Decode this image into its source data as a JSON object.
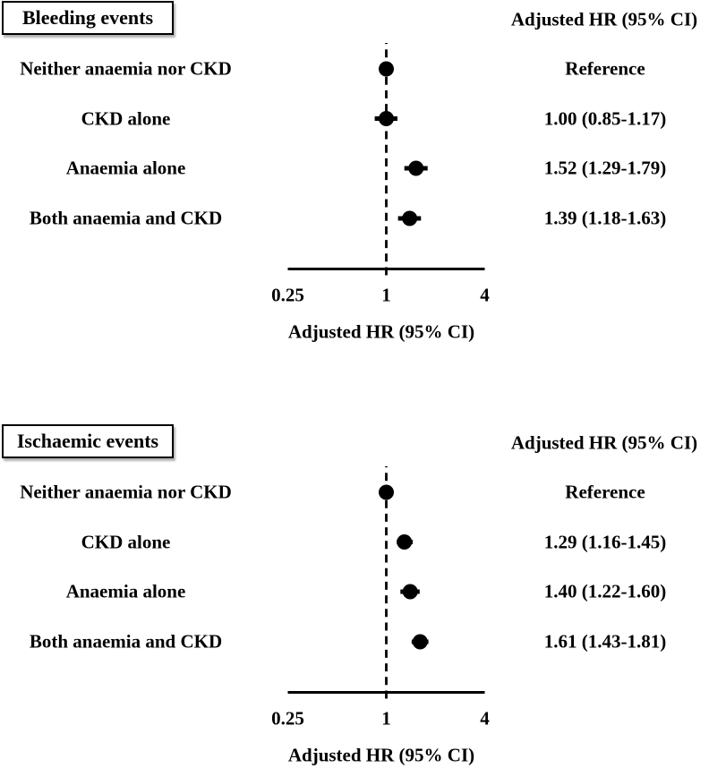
{
  "colors": {
    "foreground": "#000000",
    "background": "#ffffff"
  },
  "chart_data": [
    {
      "type": "forest",
      "title": "Bleeding events",
      "value_header": "Adjusted HR (95% CI)",
      "xlabel": "Adjusted HR (95% CI)",
      "x_scale": "log",
      "xlim": [
        0.25,
        4
      ],
      "reference_line": 1,
      "x_ticks": [
        {
          "value": 0.25,
          "label": "0.25"
        },
        {
          "value": 1,
          "label": "1"
        },
        {
          "value": 4,
          "label": "4"
        }
      ],
      "rows": [
        {
          "label": "Neither anaemia nor CKD",
          "hr": 1.0,
          "ci_low": null,
          "ci_high": null,
          "hr_text": "Reference"
        },
        {
          "label": "CKD alone",
          "hr": 1.0,
          "ci_low": 0.85,
          "ci_high": 1.17,
          "hr_text": "1.00 (0.85-1.17)"
        },
        {
          "label": "Anaemia alone",
          "hr": 1.52,
          "ci_low": 1.29,
          "ci_high": 1.79,
          "hr_text": "1.52 (1.29-1.79)"
        },
        {
          "label": "Both anaemia and CKD",
          "hr": 1.39,
          "ci_low": 1.18,
          "ci_high": 1.63,
          "hr_text": "1.39 (1.18-1.63)"
        }
      ]
    },
    {
      "type": "forest",
      "title": "Ischaemic events",
      "value_header": "Adjusted HR (95% CI)",
      "xlabel": "Adjusted HR (95% CI)",
      "x_scale": "log",
      "xlim": [
        0.25,
        4
      ],
      "reference_line": 1,
      "x_ticks": [
        {
          "value": 0.25,
          "label": "0.25"
        },
        {
          "value": 1,
          "label": "1"
        },
        {
          "value": 4,
          "label": "4"
        }
      ],
      "rows": [
        {
          "label": "Neither anaemia nor CKD",
          "hr": 1.0,
          "ci_low": null,
          "ci_high": null,
          "hr_text": "Reference"
        },
        {
          "label": "CKD alone",
          "hr": 1.29,
          "ci_low": 1.16,
          "ci_high": 1.45,
          "hr_text": "1.29 (1.16-1.45)"
        },
        {
          "label": "Anaemia alone",
          "hr": 1.4,
          "ci_low": 1.22,
          "ci_high": 1.6,
          "hr_text": "1.40 (1.22-1.60)"
        },
        {
          "label": "Both anaemia and CKD",
          "hr": 1.61,
          "ci_low": 1.43,
          "ci_high": 1.81,
          "hr_text": "1.61 (1.43-1.81)"
        }
      ]
    }
  ]
}
